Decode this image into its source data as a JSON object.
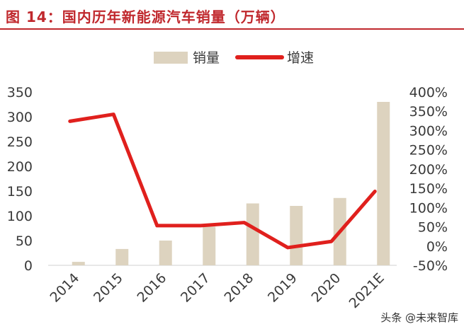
{
  "header": {
    "title": "图 14：国内历年新能源汽车销量（万辆）"
  },
  "watermark": "头条 @未来智库",
  "colors": {
    "title": "#c0282d",
    "bar": "#ddd3bf",
    "line": "#e0201d",
    "text": "#3a3a3a"
  },
  "chart_data": {
    "type": "bar+line",
    "categories": [
      "2014",
      "2015",
      "2016",
      "2017",
      "2018",
      "2019",
      "2020",
      "2021E"
    ],
    "series": [
      {
        "name": "销量",
        "type": "bar",
        "axis": "left",
        "values": [
          7,
          33,
          50,
          78,
          125,
          120,
          136,
          330
        ]
      },
      {
        "name": "增速",
        "type": "line",
        "axis": "right",
        "unit": "%",
        "values": [
          324,
          342,
          53,
          53,
          61,
          -4,
          12,
          142
        ]
      }
    ],
    "left_axis": {
      "min": 0,
      "max": 350,
      "step": 50,
      "ticks": [
        "0",
        "50",
        "100",
        "150",
        "200",
        "250",
        "300",
        "350"
      ]
    },
    "right_axis": {
      "min": -50,
      "max": 400,
      "step": 50,
      "ticks": [
        "-50%",
        "0%",
        "50%",
        "100%",
        "150%",
        "200%",
        "250%",
        "300%",
        "350%",
        "400%"
      ]
    },
    "legend": {
      "position": "top",
      "items": [
        "销量",
        "增速"
      ]
    },
    "grid": false
  }
}
